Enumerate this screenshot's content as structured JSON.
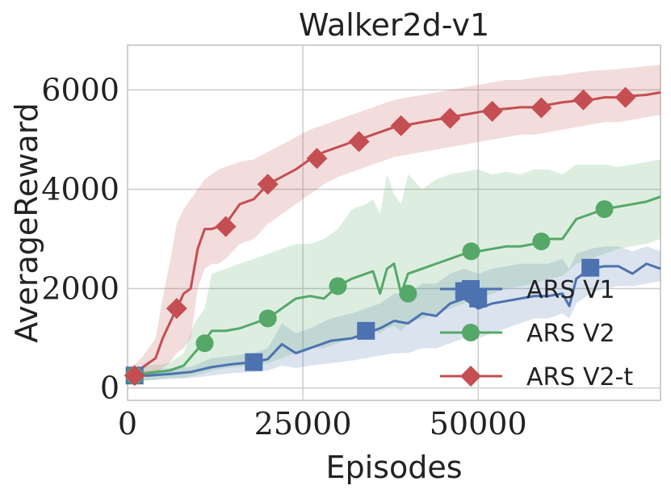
{
  "chart_data": {
    "type": "line",
    "title": "Walker2d-v1",
    "xlabel": "Episodes",
    "ylabel": "AverageReward",
    "xlim": [
      0,
      76000
    ],
    "ylim": [
      -250,
      6900
    ],
    "xticks": [
      0,
      25000,
      50000
    ],
    "xtick_labels": [
      "0",
      "25000",
      "50000"
    ],
    "yticks": [
      0,
      2000,
      4000,
      6000
    ],
    "ytick_labels": [
      "0",
      "2000",
      "4000",
      "6000"
    ],
    "grid": true,
    "legend_position": "bottom-right",
    "series": [
      {
        "name": "ARS V1",
        "color": "#4c72b0",
        "marker": "square",
        "x": [
          0,
          3000,
          6000,
          9000,
          12000,
          15000,
          18000,
          20000,
          22000,
          24000,
          26000,
          29000,
          32000,
          34000,
          36000,
          38000,
          40000,
          42000,
          44000,
          46000,
          48000,
          50000,
          52000,
          54000,
          56000,
          58000,
          60000,
          62000,
          63000,
          64000,
          66000,
          68000,
          70000,
          72000,
          74000,
          76000
        ],
        "y": [
          250,
          250,
          280,
          320,
          420,
          480,
          520,
          580,
          880,
          700,
          800,
          950,
          1000,
          1100,
          1200,
          1350,
          1300,
          1500,
          1450,
          1700,
          1800,
          1600,
          1700,
          1750,
          1800,
          1850,
          1850,
          1900,
          1650,
          2200,
          2400,
          2450,
          2450,
          2300,
          2500,
          2400
        ],
        "marker_x": [
          1000,
          18000,
          34000,
          48000,
          50000,
          66000
        ],
        "marker_y": [
          250,
          520,
          1150,
          1950,
          1800,
          2420
        ],
        "band_lower": [
          150,
          150,
          180,
          200,
          250,
          300,
          320,
          350,
          450,
          400,
          450,
          500,
          550,
          600,
          650,
          700,
          700,
          800,
          800,
          900,
          1000,
          1000,
          1100,
          1200,
          1300,
          1400,
          1400,
          1500,
          1400,
          1700,
          1900,
          2000,
          2050,
          2050,
          2100,
          2150
        ],
        "band_upper": [
          350,
          350,
          400,
          420,
          600,
          650,
          700,
          800,
          1300,
          1100,
          1200,
          1400,
          1500,
          1600,
          1700,
          1900,
          1900,
          2100,
          2100,
          2300,
          2400,
          2300,
          2400,
          2450,
          2500,
          2500,
          2500,
          2600,
          2400,
          2700,
          2800,
          2850,
          2850,
          2750,
          2850,
          2750
        ]
      },
      {
        "name": "ARS V2",
        "color": "#55a868",
        "marker": "circle",
        "x": [
          0,
          3000,
          6000,
          8000,
          9500,
          11000,
          12000,
          14000,
          16000,
          18000,
          20000,
          22000,
          24000,
          26000,
          28000,
          30000,
          32000,
          34000,
          35000,
          36000,
          37000,
          38000,
          39000,
          40000,
          42000,
          44000,
          46000,
          48000,
          50000,
          52000,
          54000,
          56000,
          58000,
          60000,
          62000,
          64000,
          66000,
          68000,
          70000,
          72000,
          74000,
          76000
        ],
        "y": [
          250,
          300,
          350,
          450,
          700,
          950,
          1150,
          1150,
          1200,
          1300,
          1400,
          1600,
          1800,
          1850,
          1800,
          2050,
          2200,
          2300,
          2350,
          1900,
          2400,
          2500,
          1900,
          2300,
          2400,
          2500,
          2600,
          2700,
          2750,
          2800,
          2850,
          2850,
          2900,
          3000,
          3000,
          3400,
          3500,
          3600,
          3650,
          3700,
          3750,
          3850
        ],
        "marker_x": [
          1000,
          11000,
          20000,
          30000,
          40000,
          49000,
          59000,
          68000
        ],
        "marker_y": [
          250,
          900,
          1400,
          2050,
          1900,
          2750,
          2950,
          3600
        ],
        "band_lower": [
          150,
          150,
          200,
          200,
          250,
          300,
          350,
          400,
          420,
          450,
          500,
          600,
          700,
          800,
          800,
          900,
          1000,
          1100,
          1150,
          1100,
          1200,
          1250,
          1150,
          1300,
          1400,
          1500,
          1600,
          1700,
          1800,
          1900,
          2000,
          2050,
          2100,
          2200,
          2250,
          2500,
          2600,
          2700,
          2800,
          2850,
          2900,
          3000
        ],
        "band_upper": [
          350,
          450,
          500,
          700,
          1300,
          1600,
          2300,
          2400,
          2500,
          2600,
          2700,
          2800,
          2900,
          2900,
          3000,
          3200,
          3600,
          3700,
          3800,
          3500,
          4300,
          3900,
          3700,
          4300,
          4000,
          4200,
          4300,
          4350,
          4400,
          4300,
          4350,
          4300,
          4400,
          4400,
          4300,
          4500,
          4500,
          4500,
          4450,
          4500,
          4550,
          4600
        ]
      },
      {
        "name": "ARS V2-t",
        "color": "#c44e52",
        "marker": "diamond",
        "x": [
          0,
          2000,
          4000,
          5000,
          6000,
          7000,
          8000,
          9000,
          10000,
          11000,
          12000,
          13000,
          14000,
          16000,
          18000,
          20000,
          22000,
          24000,
          26000,
          28000,
          30000,
          32000,
          34000,
          36000,
          38000,
          40000,
          42000,
          44000,
          46000,
          48000,
          50000,
          52000,
          54000,
          56000,
          58000,
          60000,
          62000,
          64000,
          66000,
          68000,
          70000,
          72000,
          74000,
          76000
        ],
        "y": [
          250,
          400,
          600,
          1000,
          1300,
          1600,
          1900,
          2000,
          2800,
          3200,
          3200,
          3250,
          3300,
          3700,
          3800,
          4100,
          4250,
          4400,
          4600,
          4750,
          4850,
          4950,
          5050,
          5150,
          5250,
          5300,
          5350,
          5400,
          5450,
          5500,
          5550,
          5600,
          5620,
          5650,
          5650,
          5700,
          5750,
          5780,
          5800,
          5850,
          5850,
          5880,
          5900,
          5950
        ],
        "marker_x": [
          1000,
          7000,
          14000,
          20000,
          27000,
          33000,
          39000,
          46000,
          52000,
          59000,
          65000,
          71000
        ],
        "marker_y": [
          250,
          1600,
          3250,
          4100,
          4620,
          4960,
          5280,
          5430,
          5570,
          5640,
          5800,
          5850
        ],
        "band_lower": [
          150,
          250,
          300,
          400,
          500,
          700,
          800,
          1000,
          2000,
          2400,
          2500,
          2500,
          2600,
          2900,
          3000,
          3300,
          3500,
          3700,
          3900,
          4100,
          4250,
          4350,
          4450,
          4550,
          4650,
          4700,
          4750,
          4800,
          4850,
          4900,
          4950,
          5000,
          5050,
          5100,
          5100,
          5150,
          5200,
          5250,
          5300,
          5350,
          5350,
          5400,
          5450,
          5500
        ],
        "band_upper": [
          350,
          600,
          1000,
          1800,
          2500,
          3300,
          3600,
          3800,
          4000,
          4200,
          4300,
          4400,
          4450,
          4550,
          4600,
          4750,
          4900,
          5050,
          5200,
          5300,
          5400,
          5500,
          5600,
          5700,
          5800,
          5850,
          5900,
          5950,
          6000,
          6050,
          6100,
          6150,
          6200,
          6200,
          6250,
          6280,
          6300,
          6350,
          6380,
          6400,
          6420,
          6450,
          6480,
          6500
        ]
      }
    ]
  }
}
